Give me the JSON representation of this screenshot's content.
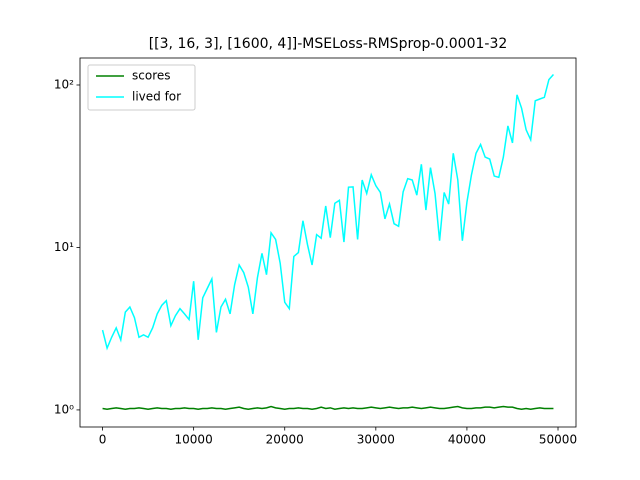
{
  "chart_data": {
    "type": "line",
    "title": "[[3, 16, 3], [1600, 4]]-MSELoss-RMSprop-0.0001-32",
    "x": [
      0,
      500,
      1000,
      1500,
      2000,
      2500,
      3000,
      3500,
      4000,
      4500,
      5000,
      5500,
      6000,
      6500,
      7000,
      7500,
      8000,
      8500,
      9000,
      9500,
      10000,
      10500,
      11000,
      11500,
      12000,
      12500,
      13000,
      13500,
      14000,
      14500,
      15000,
      15500,
      16000,
      16500,
      17000,
      17500,
      18000,
      18500,
      19000,
      19500,
      20000,
      20500,
      21000,
      21500,
      22000,
      22500,
      23000,
      23500,
      24000,
      24500,
      25000,
      25500,
      26000,
      26500,
      27000,
      27500,
      28000,
      28500,
      29000,
      29500,
      30000,
      30500,
      31000,
      31500,
      32000,
      32500,
      33000,
      33500,
      34000,
      34500,
      35000,
      35500,
      36000,
      36500,
      37000,
      37500,
      38000,
      38500,
      39000,
      39500,
      40000,
      40500,
      41000,
      41500,
      42000,
      42500,
      43000,
      43500,
      44000,
      44500,
      45000,
      45500,
      46000,
      46500,
      47000,
      47500,
      48000,
      48500,
      49000,
      49500
    ],
    "series": [
      {
        "name": "scores",
        "color": "#008000",
        "values": [
          1.02,
          1.01,
          1.02,
          1.03,
          1.02,
          1.01,
          1.02,
          1.02,
          1.03,
          1.02,
          1.01,
          1.02,
          1.03,
          1.02,
          1.02,
          1.01,
          1.02,
          1.02,
          1.03,
          1.02,
          1.02,
          1.01,
          1.02,
          1.02,
          1.03,
          1.02,
          1.02,
          1.01,
          1.02,
          1.03,
          1.04,
          1.02,
          1.01,
          1.02,
          1.03,
          1.02,
          1.03,
          1.05,
          1.03,
          1.02,
          1.01,
          1.02,
          1.02,
          1.03,
          1.02,
          1.02,
          1.01,
          1.02,
          1.04,
          1.02,
          1.03,
          1.01,
          1.02,
          1.03,
          1.02,
          1.03,
          1.02,
          1.02,
          1.03,
          1.04,
          1.03,
          1.02,
          1.03,
          1.04,
          1.03,
          1.02,
          1.03,
          1.03,
          1.04,
          1.03,
          1.02,
          1.03,
          1.04,
          1.03,
          1.02,
          1.02,
          1.03,
          1.04,
          1.05,
          1.03,
          1.02,
          1.02,
          1.03,
          1.03,
          1.04,
          1.04,
          1.03,
          1.04,
          1.05,
          1.04,
          1.04,
          1.02,
          1.01,
          1.02,
          1.01,
          1.02,
          1.03,
          1.02,
          1.02,
          1.02
        ]
      },
      {
        "name": "lived for",
        "color": "#00ffff",
        "values": [
          3.1,
          2.4,
          2.8,
          3.2,
          2.7,
          4.0,
          4.3,
          3.7,
          2.8,
          2.9,
          2.8,
          3.2,
          3.9,
          4.4,
          4.7,
          3.3,
          3.8,
          4.2,
          3.9,
          3.6,
          6.2,
          2.7,
          4.9,
          5.6,
          6.4,
          3.0,
          4.3,
          4.8,
          3.9,
          5.9,
          7.8,
          7.0,
          5.7,
          3.9,
          6.5,
          9.2,
          6.8,
          12.3,
          11.2,
          8.0,
          4.6,
          4.2,
          8.8,
          9.3,
          14.6,
          10.4,
          7.8,
          12.0,
          11.4,
          18.0,
          11.5,
          18.7,
          19.5,
          10.8,
          23.5,
          23.6,
          11.2,
          26.0,
          21.5,
          28.0,
          24.0,
          21.8,
          15.0,
          18.5,
          14.0,
          13.5,
          22.0,
          26.5,
          26.0,
          21.0,
          32.5,
          17.0,
          31.0,
          21.5,
          11.0,
          21.8,
          18.5,
          38.0,
          26.0,
          11.0,
          19.0,
          28.0,
          38.0,
          43.0,
          36.0,
          35.0,
          27.5,
          27.0,
          36.0,
          56.0,
          44.0,
          87.0,
          72.0,
          53.0,
          46.0,
          80.0,
          82.0,
          84.0,
          108.0,
          116.0
        ]
      }
    ],
    "xlim": [
      -2475,
      51975
    ],
    "xticks": [
      0,
      10000,
      20000,
      30000,
      40000,
      50000
    ],
    "ylim": [
      0.785,
      146.6
    ],
    "log_y": true,
    "yticks": [
      {
        "value": 1,
        "label": "10⁰"
      },
      {
        "value": 10,
        "label": "10¹"
      },
      {
        "value": 100,
        "label": "10²"
      }
    ],
    "legend": "upper left"
  }
}
